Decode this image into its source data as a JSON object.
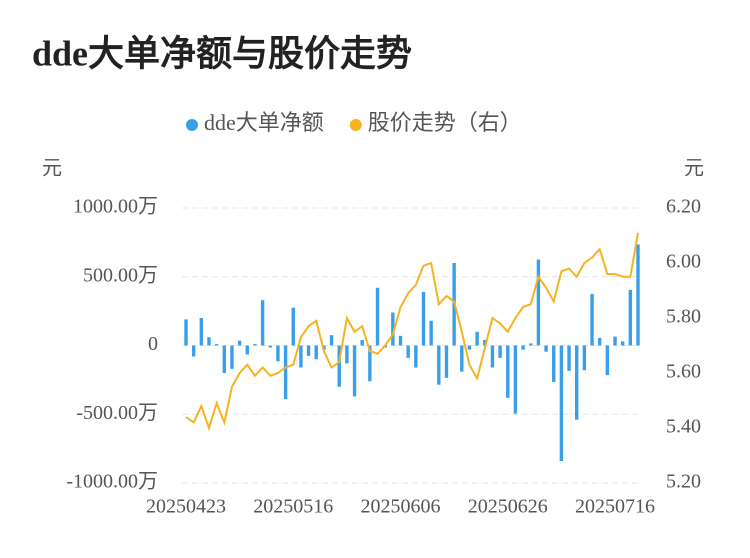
{
  "chart_data": {
    "type": "bar",
    "title": "dde大单净额与股价走势",
    "y_label": "元",
    "y2_label": "元",
    "categories": [
      "20250423",
      null,
      null,
      null,
      null,
      null,
      null,
      null,
      null,
      null,
      null,
      null,
      null,
      null,
      "20250516",
      null,
      null,
      null,
      null,
      null,
      null,
      null,
      null,
      null,
      null,
      null,
      null,
      null,
      "20250606",
      null,
      null,
      null,
      null,
      null,
      null,
      null,
      null,
      null,
      null,
      null,
      null,
      null,
      "20250626",
      null,
      null,
      null,
      null,
      null,
      null,
      null,
      null,
      null,
      null,
      null,
      null,
      null,
      "20250716",
      null,
      null,
      null
    ],
    "series": [
      {
        "name": "dde大单净额",
        "type": "bar",
        "color": "#3a9fe8",
        "values": [
          190,
          -80,
          200,
          60,
          10,
          -200,
          -170,
          35,
          -65,
          10,
          330,
          -15,
          -115,
          -390,
          275,
          -160,
          -75,
          -100,
          -30,
          75,
          -300,
          -130,
          -370,
          40,
          -260,
          420,
          -15,
          240,
          70,
          -90,
          -160,
          390,
          180,
          -285,
          -235,
          600,
          -190,
          -30,
          100,
          40,
          -160,
          -90,
          -380,
          -495,
          -30,
          15,
          625,
          -45,
          -265,
          -840,
          -185,
          -540,
          -180,
          375,
          55,
          -215,
          65,
          30,
          405,
          735
        ]
      },
      {
        "name": "股价走势（右）",
        "type": "line",
        "axis": "y2",
        "color": "#f5b31f",
        "values": [
          5.44,
          5.42,
          5.48,
          5.4,
          5.49,
          5.42,
          5.55,
          5.6,
          5.63,
          5.59,
          5.62,
          5.59,
          5.6,
          5.62,
          5.63,
          5.73,
          5.77,
          5.79,
          5.68,
          5.62,
          5.64,
          5.8,
          5.75,
          5.77,
          5.68,
          5.67,
          5.7,
          5.74,
          5.84,
          5.89,
          5.92,
          5.99,
          6.0,
          5.85,
          5.88,
          5.86,
          5.75,
          5.63,
          5.58,
          5.69,
          5.8,
          5.78,
          5.75,
          5.8,
          5.84,
          5.85,
          5.95,
          5.91,
          5.86,
          5.97,
          5.98,
          5.95,
          6.0,
          6.02,
          6.05,
          5.96,
          5.96,
          5.95,
          5.95,
          6.11
        ]
      }
    ],
    "ylim": [
      -1000,
      1000
    ],
    "yticks": [
      {
        "value": 1000,
        "label": "1000.00万"
      },
      {
        "value": 500,
        "label": "500.00万"
      },
      0,
      {
        "value": -500,
        "label": "-500.00万"
      },
      {
        "value": -1000,
        "label": "-1000.00万"
      }
    ],
    "y2lim": [
      5.2,
      6.2
    ],
    "y2ticks": [
      {
        "value": 6.2,
        "label": "6.20"
      },
      {
        "value": 6.0,
        "label": "6.00"
      },
      {
        "value": 5.8,
        "label": "5.80"
      },
      {
        "value": 5.6,
        "label": "5.60"
      },
      {
        "value": 5.4,
        "label": "5.40"
      },
      {
        "value": 5.2,
        "label": "5.20"
      }
    ],
    "grid": true
  }
}
